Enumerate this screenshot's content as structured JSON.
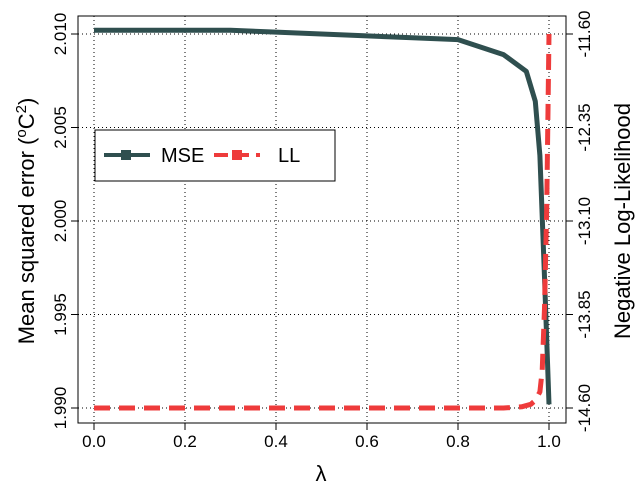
{
  "chart_data": {
    "type": "line",
    "title": "",
    "xlabel": "λ",
    "ylabel_left": {
      "text": "Mean squared error (",
      "sup1": "o",
      "mid": "C",
      "sup2": "2",
      "end": ")"
    },
    "ylabel_right": "Negative Log-Likelihood",
    "xlim": [
      0,
      1
    ],
    "ylim_left": [
      1.99,
      2.01
    ],
    "ylim_right": [
      -14.6,
      -11.6
    ],
    "x_ticks": [
      "0.0",
      "0.2",
      "0.4",
      "0.6",
      "0.8",
      "1.0"
    ],
    "y_left_ticks": [
      "1.990",
      "1.995",
      "2.000",
      "2.005",
      "2.010"
    ],
    "y_right_ticks": [
      "-14.60",
      "-13.85",
      "-13.10",
      "-12.35",
      "-11.60"
    ],
    "grid": true,
    "legend_position": "top-left",
    "series": [
      {
        "name": "MSE",
        "axis": "left",
        "color": "#2f4f4f",
        "style": "solid",
        "x": [
          0.0,
          0.1,
          0.2,
          0.3,
          0.4,
          0.5,
          0.6,
          0.7,
          0.8,
          0.9,
          0.95,
          0.97,
          0.98,
          0.99,
          1.0
        ],
        "y": [
          2.0102,
          2.0102,
          2.0102,
          2.0102,
          2.0101,
          2.01,
          2.0099,
          2.0098,
          2.0097,
          2.0089,
          2.008,
          2.0064,
          2.0035,
          1.997,
          1.9902
        ]
      },
      {
        "name": "LL",
        "axis": "right",
        "color": "#ee3b3b",
        "style": "dashed",
        "x": [
          0.0,
          0.2,
          0.4,
          0.6,
          0.8,
          0.9,
          0.94,
          0.96,
          0.97,
          0.98,
          0.985,
          0.99,
          0.995,
          1.0
        ],
        "y": [
          -14.6,
          -14.6,
          -14.6,
          -14.6,
          -14.6,
          -14.6,
          -14.59,
          -14.57,
          -14.54,
          -14.47,
          -14.3,
          -13.8,
          -13.0,
          -11.6
        ]
      }
    ]
  }
}
